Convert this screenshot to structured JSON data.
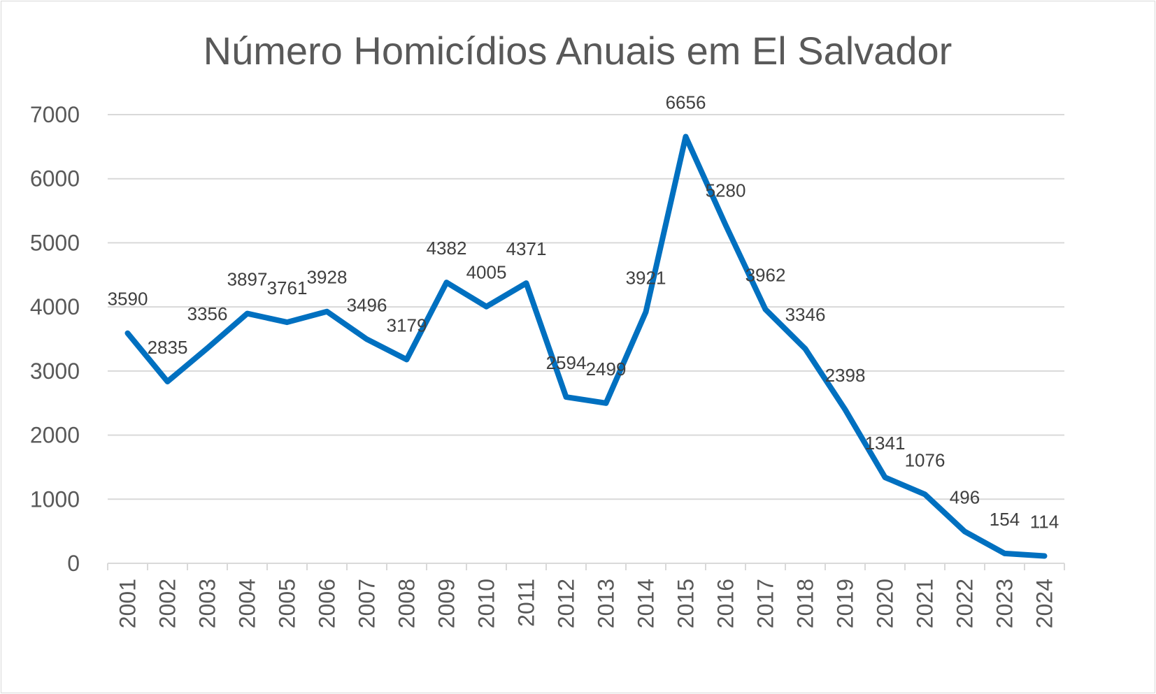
{
  "chart_data": {
    "type": "line",
    "title": "Número Homicídios Anuais em El Salvador",
    "xlabel": "",
    "ylabel": "",
    "ylim": [
      0,
      7000
    ],
    "yticks": [
      0,
      1000,
      2000,
      3000,
      4000,
      5000,
      6000,
      7000
    ],
    "grid": true,
    "legend": "none",
    "categories": [
      "2001",
      "2002",
      "2003",
      "2004",
      "2005",
      "2006",
      "2007",
      "2008",
      "2009",
      "2010",
      "2011",
      "2012",
      "2013",
      "2014",
      "2015",
      "2016",
      "2017",
      "2018",
      "2019",
      "2020",
      "2021",
      "2022",
      "2023",
      "2024"
    ],
    "series": [
      {
        "color": "#0070C0",
        "values": [
          3590,
          2835,
          3356,
          3897,
          3761,
          3928,
          3496,
          3179,
          4382,
          4005,
          4371,
          2594,
          2499,
          3921,
          6656,
          5280,
          3962,
          3346,
          2398,
          1341,
          1076,
          496,
          154,
          114
        ],
        "labels": [
          "3590",
          "2835",
          "3356",
          "3897",
          "3761",
          "3928",
          "3496",
          "3179",
          "4382",
          "4005",
          "4371",
          "2594",
          "2499",
          "3921",
          "6656",
          "5280",
          "3962",
          "3346",
          "2398",
          "1341",
          "1076",
          "496",
          "154",
          "114"
        ]
      }
    ]
  }
}
